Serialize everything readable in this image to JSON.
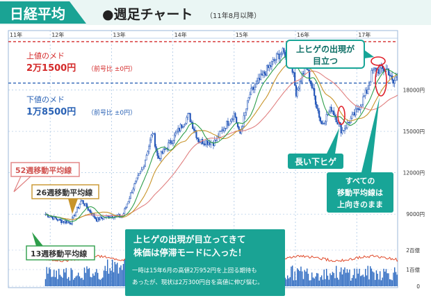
{
  "header": {
    "badge": "日経平均",
    "title": "●週足チャート",
    "period_note": "（11年8月以降）"
  },
  "annotations": {
    "upper_target_label": "上値のメド",
    "upper_target_value": "2万1500円",
    "upper_target_note": "（前号比 ±0円）",
    "lower_target_label": "下値のメド",
    "lower_target_value": "1万8500円",
    "lower_target_note": "（前号比 ±0円）",
    "upper_shadow_callout_line1": "上ヒゲの出現が",
    "upper_shadow_callout_line2": "目立つ",
    "long_lower_shadow": "長い下ヒゲ",
    "all_ma_line1": "すべての",
    "all_ma_line2": "移動平均線は",
    "all_ma_line3": "上向きのまま",
    "ma52_label": "52週移動平均線",
    "ma26_label": "26週移動平均線",
    "ma13_label": "13週移動平均線",
    "summary_title_line1": "上ヒゲの出現が目立ってきて",
    "summary_title_line2": "株価は停滞モードに入った！",
    "summary_body_line1": "一時は15年6月の高値2万952円を上回る期待も",
    "summary_body_line2": "あったが、現状は2万300円台を高値に伸び悩む。"
  },
  "colors": {
    "header_green": "#1aa394",
    "teal": "#18a597",
    "candle": "#2255b8",
    "upper_line": "#d42a2a",
    "lower_line": "#2a62b5",
    "ma13": "#2e9e4a",
    "ma26": "#c8942a",
    "ma52": "#e08080",
    "ratio_line": "#e04a2a",
    "volume": "#2a68c0",
    "grid": "#a9c5e3"
  },
  "chart_data": {
    "type": "candlestick",
    "title": "週足チャート",
    "x_tick_labels": [
      "11年",
      "12年",
      "13年",
      "14年",
      "15年",
      "16年",
      "17年"
    ],
    "y_tick_labels": [
      "9000円",
      "12000円",
      "15000円",
      "18000円"
    ],
    "y_range": [
      7700,
      21600
    ],
    "horizontal_lines": [
      {
        "label": "上値のメド",
        "value": 21500
      },
      {
        "label": "下値のメド",
        "value": 18500
      }
    ],
    "close_approx": [
      [
        "2011-08",
        9000
      ],
      [
        "2011-11",
        8500
      ],
      [
        "2012-01",
        8400
      ],
      [
        "2012-03",
        10000
      ],
      [
        "2012-06",
        8600
      ],
      [
        "2012-09",
        8900
      ],
      [
        "2012-11",
        8800
      ],
      [
        "2013-01",
        10800
      ],
      [
        "2013-03",
        12300
      ],
      [
        "2013-05",
        15000
      ],
      [
        "2013-06",
        13000
      ],
      [
        "2013-09",
        14500
      ],
      [
        "2013-12",
        16200
      ],
      [
        "2014-02",
        14300
      ],
      [
        "2014-05",
        14200
      ],
      [
        "2014-07",
        15300
      ],
      [
        "2014-09",
        16300
      ],
      [
        "2014-10",
        14700
      ],
      [
        "2014-12",
        17700
      ],
      [
        "2015-03",
        19300
      ],
      [
        "2015-06",
        20700
      ],
      [
        "2015-08",
        20500
      ],
      [
        "2015-09",
        17800
      ],
      [
        "2015-11",
        19800
      ],
      [
        "2016-01",
        17000
      ],
      [
        "2016-02",
        15500
      ],
      [
        "2016-04",
        16700
      ],
      [
        "2016-06",
        15000
      ],
      [
        "2016-09",
        16500
      ],
      [
        "2016-11",
        18000
      ],
      [
        "2016-12",
        19400
      ],
      [
        "2017-03",
        19500
      ],
      [
        "2017-04",
        18400
      ],
      [
        "2017-06",
        20000
      ],
      [
        "2017-08",
        19500
      ],
      [
        "2017-09",
        20300
      ]
    ],
    "moving_averages": [
      "13週移動平均線",
      "26週移動平均線",
      "52週移動平均線"
    ],
    "lower_panel_ticks": [
      "2百億",
      "1百億",
      "0"
    ]
  }
}
